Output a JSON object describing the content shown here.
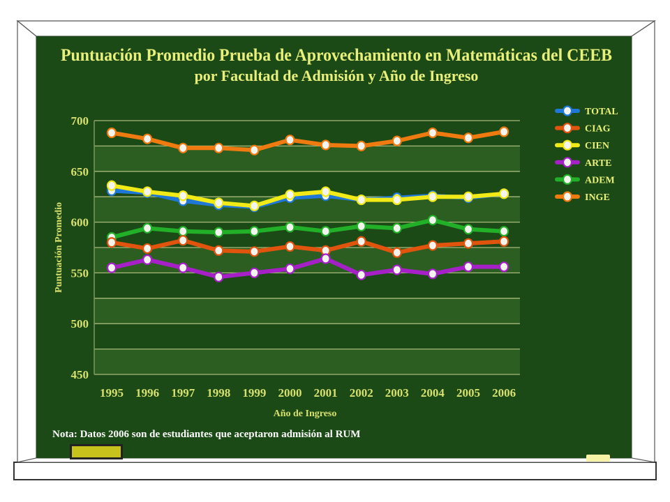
{
  "note": "Nota:  Datos 2006 son de estudiantes que aceptaron admisión al RUM",
  "colors": {
    "board": "#1b4a16",
    "band": "#2c5e22",
    "text": "#e8ef7a",
    "TOTAL": "#1f78d8",
    "CIAG": "#e0540e",
    "CIEN": "#f2ea16",
    "ARTE": "#a620c8",
    "ADEM": "#22b028",
    "INGE": "#ef7a10"
  },
  "chart_data": {
    "type": "line",
    "title": "Puntuación Promedio Prueba de Aprovechamiento en Matemáticas del CEEB",
    "subtitle": "por Facultad de Admisión y Año de Ingreso",
    "xlabel": "Año de Ingreso",
    "ylabel": "Puntuación Promedio",
    "ylim": [
      450,
      700
    ],
    "yticks": [
      "700",
      "650",
      "600",
      "550",
      "500",
      "450"
    ],
    "grid": true,
    "legend_position": "right",
    "categories": [
      "1995",
      "1996",
      "1997",
      "1998",
      "1999",
      "2000",
      "2001",
      "2002",
      "2003",
      "2004",
      "2005",
      "2006"
    ],
    "series": [
      {
        "name": "TOTAL",
        "values": [
          631,
          629,
          621,
          617,
          615,
          624,
          626,
          622,
          624,
          626,
          624,
          628
        ]
      },
      {
        "name": "CIAG",
        "values": [
          580,
          574,
          582,
          572,
          571,
          576,
          572,
          581,
          570,
          577,
          579,
          581
        ]
      },
      {
        "name": "CIEN",
        "values": [
          636,
          630,
          626,
          619,
          616,
          627,
          630,
          622,
          622,
          625,
          625,
          628
        ]
      },
      {
        "name": "ARTE",
        "values": [
          555,
          563,
          555,
          546,
          550,
          554,
          564,
          548,
          553,
          549,
          556,
          556
        ]
      },
      {
        "name": "ADEM",
        "values": [
          585,
          594,
          591,
          590,
          591,
          595,
          591,
          596,
          594,
          602,
          593,
          591
        ]
      },
      {
        "name": "INGE",
        "values": [
          688,
          682,
          673,
          673,
          671,
          681,
          676,
          675,
          680,
          688,
          683,
          689
        ]
      }
    ]
  }
}
